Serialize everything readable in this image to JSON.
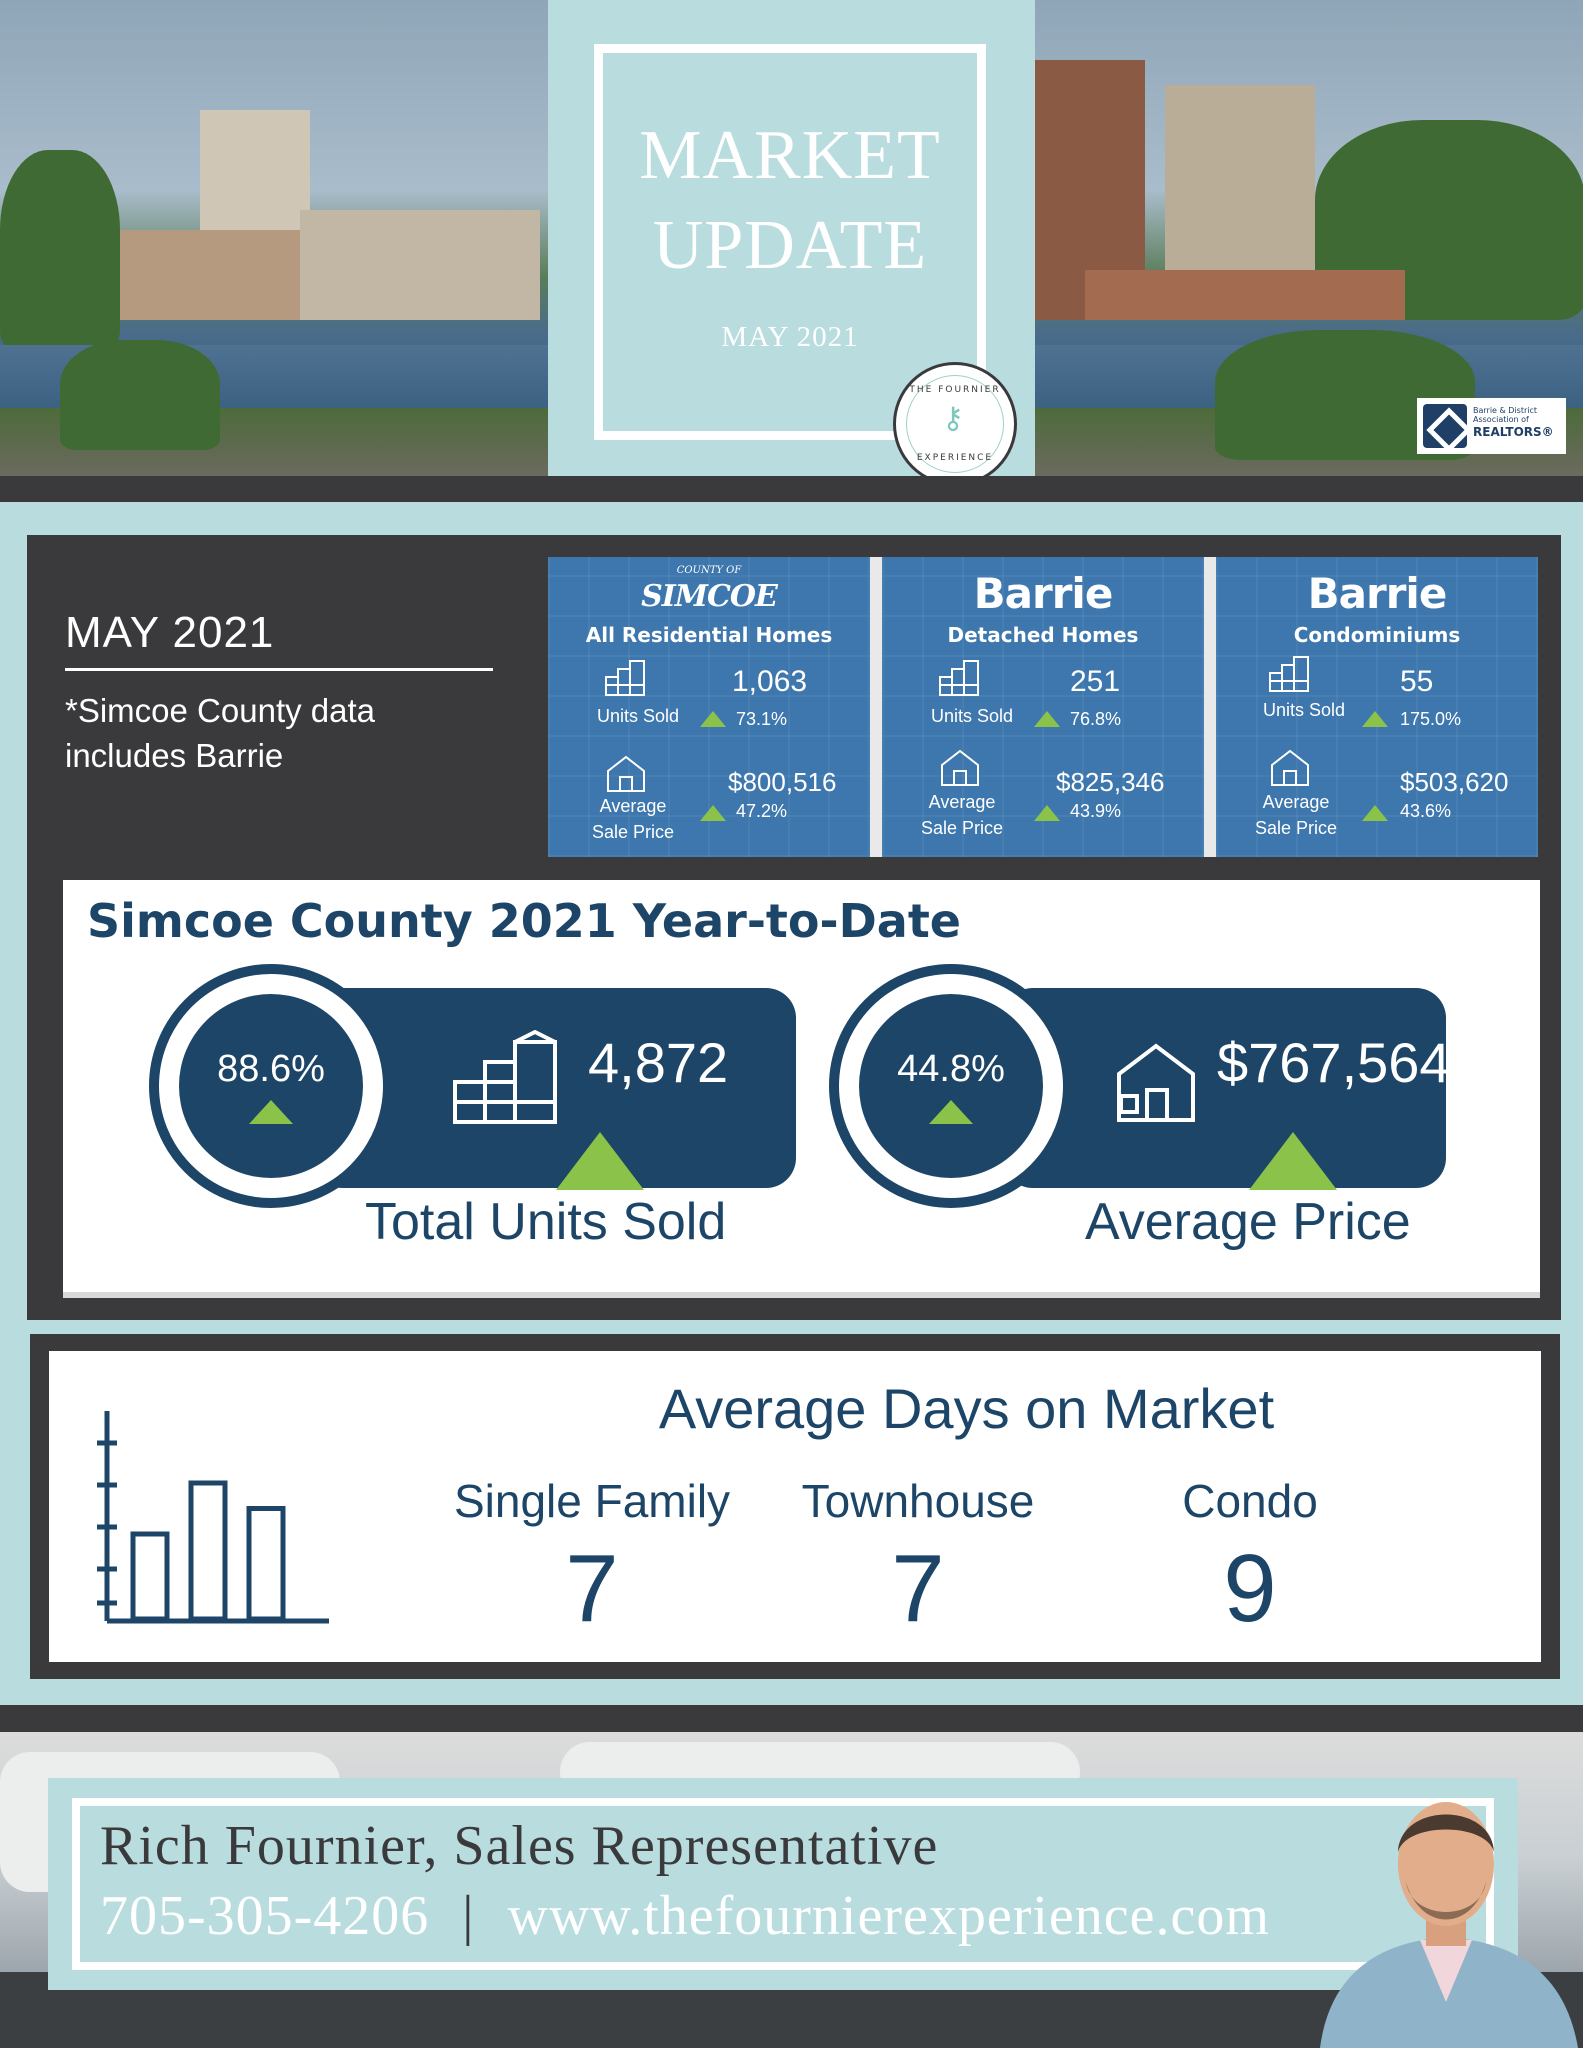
{
  "header": {
    "title_line1": "MARKET",
    "title_line2": "UPDATE",
    "date": "MAY 2021",
    "seal_top": "THE FOURNIER",
    "seal_bottom": "EXPERIENCE",
    "association_small": "Barrie & District Association of",
    "association_big": "REALTORS®"
  },
  "summary": {
    "title": "MAY 2021",
    "note": "*Simcoe County data includes Barrie"
  },
  "cards": [
    {
      "brand": "SIMCOE",
      "brand_prefix": "COUNTY OF",
      "subtitle": "All Residential Homes",
      "units_value": "1,063",
      "units_label": "Units Sold",
      "units_change": "73.1%",
      "price_value": "$800,516",
      "price_label_1": "Average",
      "price_label_2": "Sale Price",
      "price_change": "47.2%"
    },
    {
      "brand": "Barrie",
      "subtitle": "Detached Homes",
      "units_value": "251",
      "units_label": "Units Sold",
      "units_change": "76.8%",
      "price_value": "$825,346",
      "price_label_1": "Average",
      "price_label_2": "Sale Price",
      "price_change": "43.9%"
    },
    {
      "brand": "Barrie",
      "subtitle": "Condominiums",
      "units_value": "55",
      "units_label": "Units Sold",
      "units_change": "175.0%",
      "price_value": "$503,620",
      "price_label_1": "Average",
      "price_label_2": "Sale Price",
      "price_change": "43.6%"
    }
  ],
  "ytd": {
    "title": "Simcoe County 2021 Year-to-Date",
    "units": {
      "pct": "88.6%",
      "value": "4,872",
      "label": "Total Units Sold"
    },
    "price": {
      "pct": "44.8%",
      "value": "$767,564",
      "label": "Average Price"
    }
  },
  "days_on_market": {
    "title": "Average Days on Market",
    "items": [
      {
        "label": "Single Family",
        "value": "7"
      },
      {
        "label": "Townhouse",
        "value": "7"
      },
      {
        "label": "Condo",
        "value": "9"
      }
    ],
    "chart_icon_bars": [
      0.5,
      0.8,
      0.65
    ]
  },
  "footer": {
    "agent": "Rich Fournier, Sales Representative",
    "phone": "705-305-4206",
    "separator": "|",
    "website": "www.thefournierexperience.com"
  },
  "colors": {
    "navy": "#1d4567",
    "teal_bg": "#b9dcdf",
    "charcoal": "#3a3a3c",
    "card_blue": "#3d77ad",
    "up_green": "#8bc34a"
  },
  "icons": [
    "building-icon",
    "house-icon",
    "up-triangle-icon",
    "bar-chart-icon",
    "key-icon"
  ]
}
